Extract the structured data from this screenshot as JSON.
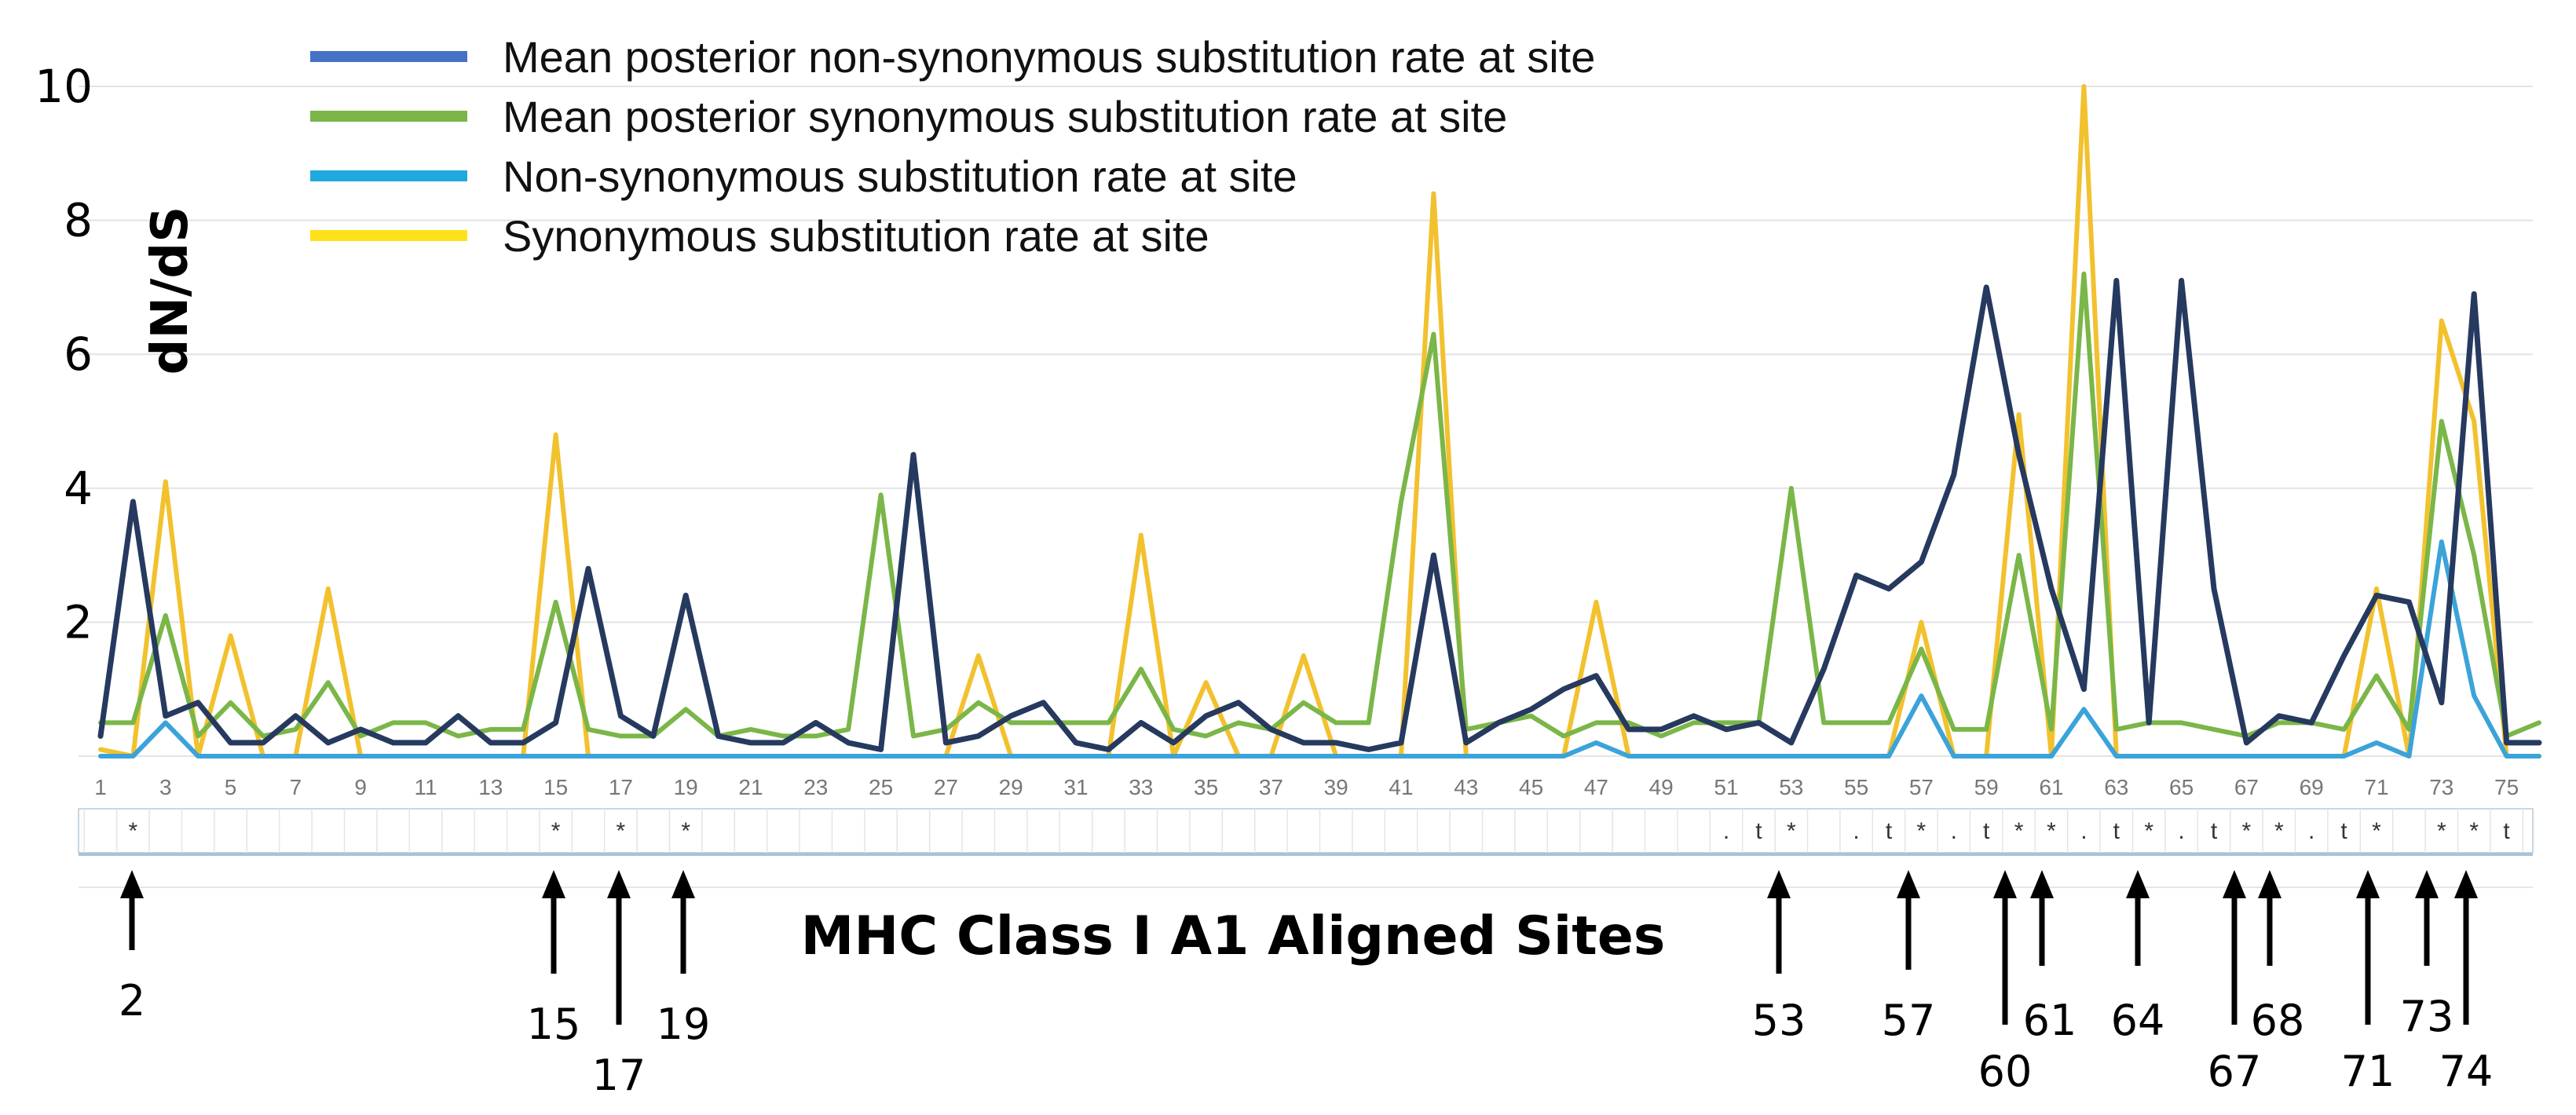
{
  "chart_data": {
    "type": "line",
    "ylabel": "dN/dS",
    "xlabel": "MHC Class I A1 Aligned Sites",
    "ylim": [
      0,
      10
    ],
    "yticks": [
      2,
      4,
      6,
      8,
      10
    ],
    "grid": true,
    "legend_position": "top",
    "xticks": [
      "1",
      "3",
      "5",
      "7",
      "9",
      "11",
      "13",
      "15",
      "17",
      "19",
      "21",
      "23",
      "25",
      "27",
      "29",
      "31",
      "33",
      "35",
      "37",
      "39",
      "41",
      "43",
      "45",
      "47",
      "49",
      "51",
      "53",
      "55",
      "57",
      "59",
      "61",
      "63",
      "65",
      "67",
      "69",
      "71",
      "73",
      "75"
    ],
    "x": [
      1,
      2,
      3,
      4,
      5,
      6,
      7,
      8,
      9,
      10,
      11,
      12,
      13,
      14,
      15,
      16,
      17,
      18,
      19,
      20,
      21,
      22,
      23,
      24,
      25,
      26,
      27,
      28,
      29,
      30,
      31,
      32,
      33,
      34,
      35,
      36,
      37,
      38,
      39,
      40,
      41,
      42,
      43,
      44,
      45,
      46,
      47,
      48,
      49,
      50,
      51,
      52,
      53,
      54,
      55,
      56,
      57,
      58,
      59,
      60,
      61,
      62,
      63,
      64,
      65,
      66,
      67,
      68,
      69,
      70,
      71,
      72,
      73,
      74,
      75,
      76
    ],
    "series": [
      {
        "name": "Synonymous substitution rate at site",
        "color": "#F2C12E",
        "values": [
          0.1,
          0,
          4.1,
          0,
          1.8,
          0,
          0,
          2.5,
          0,
          0,
          0,
          0,
          0,
          0,
          4.8,
          0,
          0,
          0,
          0,
          0,
          0,
          0,
          0,
          0,
          0,
          0,
          0,
          1.5,
          0,
          0,
          0,
          0,
          3.3,
          0,
          1.1,
          0,
          0,
          1.5,
          0,
          0,
          0,
          8.4,
          0,
          0,
          0,
          0,
          2.3,
          0,
          0,
          0,
          0,
          0,
          0,
          0,
          0,
          0,
          2,
          0,
          0,
          5.1,
          0,
          10,
          0,
          0,
          0,
          0,
          0,
          0,
          0,
          0,
          2.5,
          0,
          6.5,
          5,
          0,
          0
        ]
      },
      {
        "name": "Mean posterior synonymous substitution rate at site",
        "color": "#7AB648",
        "values": [
          0.5,
          0.5,
          2.1,
          0.3,
          0.8,
          0.3,
          0.4,
          1.1,
          0.3,
          0.5,
          0.5,
          0.3,
          0.4,
          0.4,
          2.3,
          0.4,
          0.3,
          0.3,
          0.7,
          0.3,
          0.4,
          0.3,
          0.3,
          0.4,
          3.9,
          0.3,
          0.4,
          0.8,
          0.5,
          0.5,
          0.5,
          0.5,
          1.3,
          0.4,
          0.3,
          0.5,
          0.4,
          0.8,
          0.5,
          0.5,
          3.8,
          6.3,
          0.4,
          0.5,
          0.6,
          0.3,
          0.5,
          0.5,
          0.3,
          0.5,
          0.5,
          0.5,
          4,
          0.5,
          0.5,
          0.5,
          1.6,
          0.4,
          0.4,
          3,
          0.4,
          7.2,
          0.4,
          0.5,
          0.5,
          0.4,
          0.3,
          0.5,
          0.5,
          0.4,
          1.2,
          0.4,
          5,
          3,
          0.3,
          0.5
        ]
      },
      {
        "name": "Non-synonymous substitution rate at site",
        "color": "#3BA3D9",
        "values": [
          0,
          0,
          0.5,
          0,
          0,
          0,
          0,
          0,
          0,
          0,
          0,
          0,
          0,
          0,
          0,
          0,
          0,
          0,
          0,
          0,
          0,
          0,
          0,
          0,
          0,
          0,
          0,
          0,
          0,
          0,
          0,
          0,
          0,
          0,
          0,
          0,
          0,
          0,
          0,
          0,
          0,
          0,
          0,
          0,
          0,
          0,
          0.2,
          0,
          0,
          0,
          0,
          0,
          0,
          0,
          0,
          0,
          0.9,
          0,
          0,
          0,
          0,
          0.7,
          0,
          0,
          0,
          0,
          0,
          0,
          0,
          0,
          0.2,
          0,
          3.2,
          0.9,
          0,
          0
        ]
      },
      {
        "name": "Mean posterior non-synonymous substitution rate at site",
        "color": "#26395F",
        "values": [
          0.3,
          3.8,
          0.6,
          0.8,
          0.2,
          0.2,
          0.6,
          0.2,
          0.4,
          0.2,
          0.2,
          0.6,
          0.2,
          0.2,
          0.5,
          2.8,
          0.6,
          0.3,
          2.4,
          0.3,
          0.2,
          0.2,
          0.5,
          0.2,
          0.1,
          4.5,
          0.2,
          0.3,
          0.6,
          0.8,
          0.2,
          0.1,
          0.5,
          0.2,
          0.6,
          0.8,
          0.4,
          0.2,
          0.2,
          0.1,
          0.2,
          3,
          0.2,
          0.5,
          0.7,
          1,
          1.2,
          0.4,
          0.4,
          0.6,
          0.4,
          0.5,
          0.2,
          1.3,
          2.7,
          2.5,
          2.9,
          4.2,
          7,
          4.5,
          2.5,
          1,
          7.1,
          0.5,
          7.1,
          2.5,
          0.2,
          0.6,
          0.5,
          1.5,
          2.4,
          2.3,
          0.8,
          6.9,
          0.2,
          0.2
        ]
      }
    ],
    "legend": [
      {
        "label": "Mean posterior non-synonymous substitution rate at site",
        "color": "#4472C4"
      },
      {
        "label": "Mean posterior synonymous substitution rate at site",
        "color": "#7AB648"
      },
      {
        "label": "Non-synonymous substitution rate at site",
        "color": "#1FA9E0"
      },
      {
        "label": "Synonymous substitution rate at site",
        "color": "#FFE11A"
      }
    ],
    "site_markers": [
      {
        "site": 2,
        "mark": "*"
      },
      {
        "site": 15,
        "mark": "*"
      },
      {
        "site": 17,
        "mark": "*"
      },
      {
        "site": 19,
        "mark": "*"
      },
      {
        "site": 51,
        "mark": "."
      },
      {
        "site": 52,
        "mark": "t"
      },
      {
        "site": 53,
        "mark": "*"
      },
      {
        "site": 55,
        "mark": "."
      },
      {
        "site": 56,
        "mark": "t"
      },
      {
        "site": 57,
        "mark": "*"
      },
      {
        "site": 58,
        "mark": "."
      },
      {
        "site": 59,
        "mark": "t"
      },
      {
        "site": 60,
        "mark": "*"
      },
      {
        "site": 61,
        "mark": "*"
      },
      {
        "site": 62,
        "mark": "."
      },
      {
        "site": 63,
        "mark": "t"
      },
      {
        "site": 64,
        "mark": "*"
      },
      {
        "site": 65,
        "mark": "."
      },
      {
        "site": 66,
        "mark": "t"
      },
      {
        "site": 67,
        "mark": "*"
      },
      {
        "site": 68,
        "mark": "*"
      },
      {
        "site": 69,
        "mark": "."
      },
      {
        "site": 70,
        "mark": "t"
      },
      {
        "site": 71,
        "mark": "*"
      },
      {
        "site": 73,
        "mark": "*"
      },
      {
        "site": 74,
        "mark": "*"
      },
      {
        "site": 75,
        "mark": "t"
      }
    ],
    "annotated_sites": [
      "2",
      "15",
      "17",
      "19",
      "53",
      "57",
      "60",
      "61",
      "64",
      "67",
      "68",
      "71",
      "73",
      "74"
    ]
  }
}
